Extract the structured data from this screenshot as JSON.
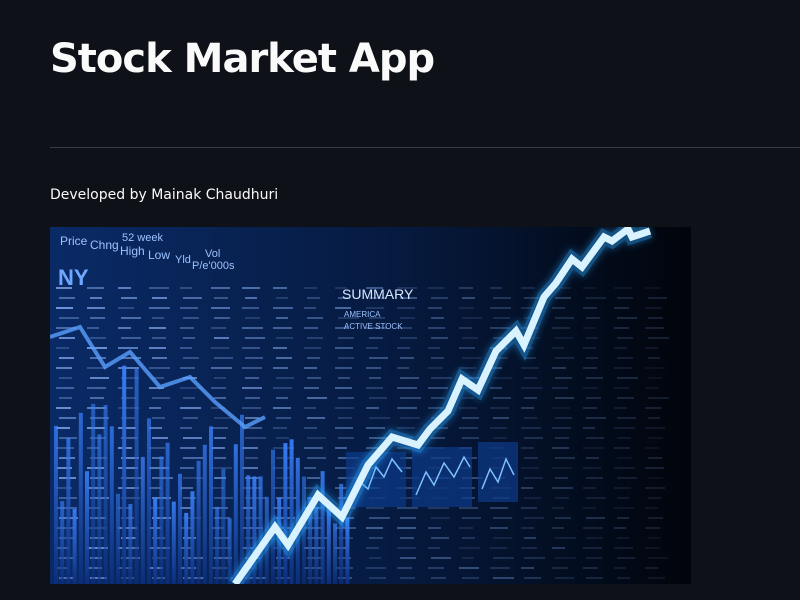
{
  "app": {
    "title": "Stock Market App",
    "subtitle": "Developed by Mainak Chaudhuri"
  },
  "hero_image": {
    "alt": "stock market ticker board with rising line chart",
    "board_labels": {
      "price": "Price",
      "chng": "Chng",
      "week_52": "52 week",
      "high": "High",
      "low": "Low",
      "yld": "Yld",
      "vol": "Vol",
      "pe": "P/e'000s",
      "ny": "NY",
      "summary": "SUMMARY",
      "america": "AMERICA",
      "active_stock": "ACTIVE STOCK"
    },
    "colors": {
      "background": "#02060e",
      "bars": "#1f5fd6",
      "line": "#cfeeff",
      "glow": "#3bb6ff",
      "ticker_text": "#8fb8ff"
    }
  }
}
